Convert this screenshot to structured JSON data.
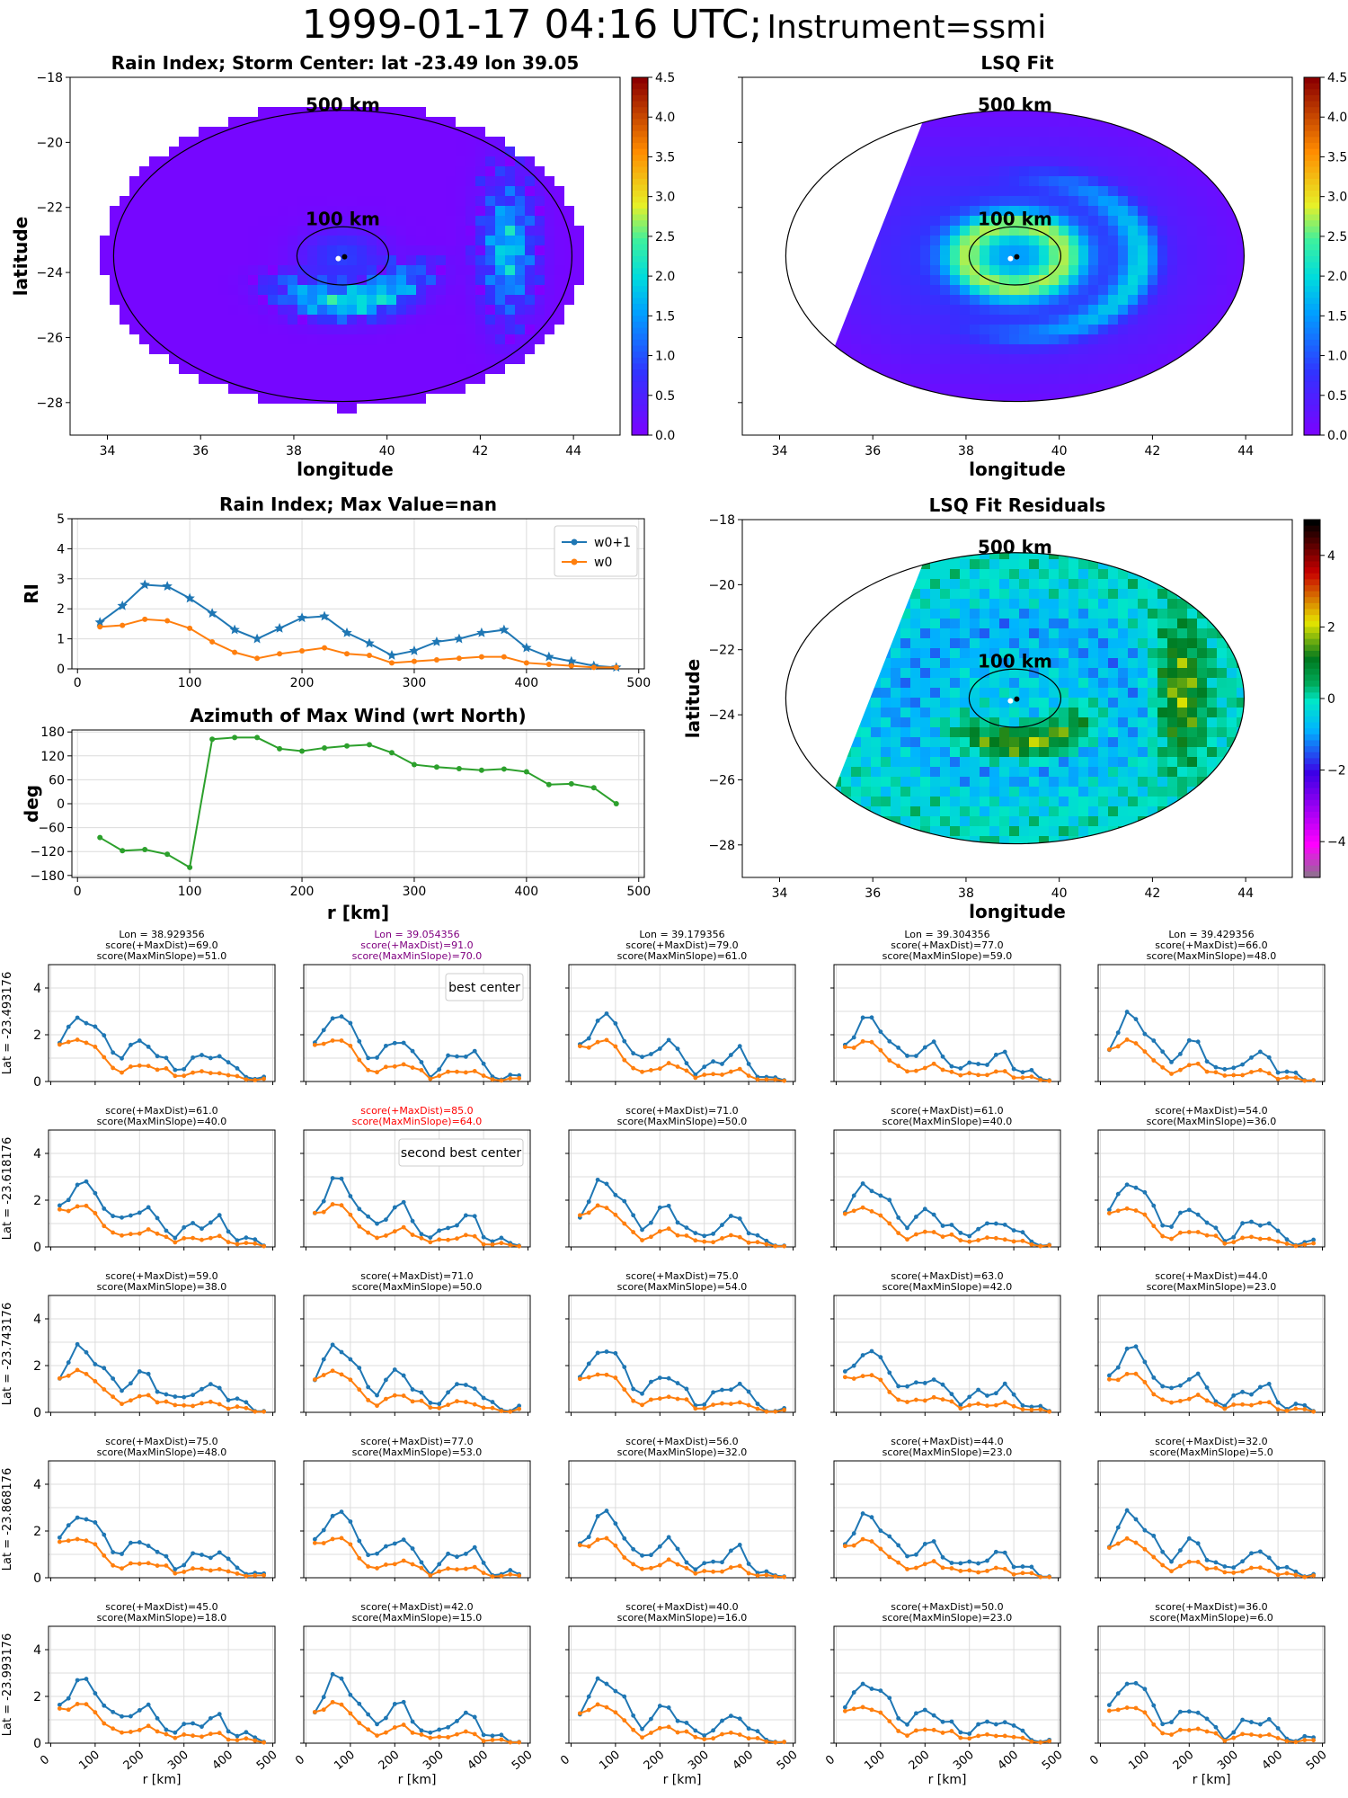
{
  "figure": {
    "title_date": "1999-01-17 04:16 UTC;",
    "title_instrument": "Instrument=ssmi"
  },
  "chart_data": [
    {
      "id": "rain_index_map",
      "type": "heatmap",
      "title": "Rain Index; Storm Center: lat -23.49 lon 39.05",
      "xlabel": "longitude",
      "ylabel": "latitude",
      "xlim": [
        33.2,
        45.0
      ],
      "ylim": [
        -29.0,
        -18.0
      ],
      "xticks": [
        "34",
        "36",
        "38",
        "40",
        "42",
        "44"
      ],
      "yticks": [
        "−28",
        "−26",
        "−24",
        "−22",
        "−20",
        "−18"
      ],
      "colorbar": {
        "min": 0.0,
        "max": 4.5,
        "ticks": [
          "0.0",
          "0.5",
          "1.0",
          "1.5",
          "2.0",
          "2.5",
          "3.0",
          "3.5",
          "4.0",
          "4.5"
        ],
        "colormap": "rainbow"
      },
      "circles": [
        {
          "label": "500 km"
        },
        {
          "label": "100 km"
        }
      ],
      "center": {
        "lat": -23.49,
        "lon": 39.05
      }
    },
    {
      "id": "lsq_fit_map",
      "type": "heatmap",
      "title": "LSQ Fit",
      "xlim": [
        33.2,
        45.0
      ],
      "ylim": [
        -29.0,
        -18.0
      ],
      "xticks": [
        "34",
        "36",
        "38",
        "40",
        "42",
        "44"
      ],
      "colorbar": {
        "min": 0.0,
        "max": 4.5,
        "ticks": [
          "0.0",
          "0.5",
          "1.0",
          "1.5",
          "2.0",
          "2.5",
          "3.0",
          "3.5",
          "4.0",
          "4.5"
        ],
        "colormap": "rainbow"
      },
      "circles": [
        {
          "label": "500 km"
        },
        {
          "label": "100 km"
        }
      ]
    },
    {
      "id": "rain_index_profile",
      "type": "line",
      "title": "Rain Index; Max Value=nan",
      "ylabel": "RI",
      "xlim": [
        -5,
        505
      ],
      "ylim": [
        0,
        5
      ],
      "xticks": [
        "0",
        "100",
        "200",
        "300",
        "400",
        "500"
      ],
      "yticks": [
        "0",
        "1",
        "2",
        "3",
        "4",
        "5"
      ],
      "legend_position": "top-right",
      "x": [
        20,
        40,
        60,
        80,
        100,
        120,
        140,
        160,
        180,
        200,
        220,
        240,
        260,
        280,
        300,
        320,
        340,
        360,
        380,
        400,
        420,
        440,
        460,
        480
      ],
      "series": [
        {
          "name": "w0+1",
          "color": "#1f77b4",
          "marker": "star",
          "values": [
            1.55,
            2.1,
            2.8,
            2.75,
            2.35,
            1.85,
            1.3,
            1.0,
            1.35,
            1.7,
            1.75,
            1.2,
            0.85,
            0.45,
            0.6,
            0.9,
            1.0,
            1.2,
            1.3,
            0.7,
            0.4,
            0.25,
            0.1,
            0.05
          ]
        },
        {
          "name": "w0",
          "color": "#ff7f0e",
          "marker": "dot",
          "values": [
            1.4,
            1.45,
            1.65,
            1.6,
            1.35,
            0.9,
            0.55,
            0.35,
            0.5,
            0.6,
            0.7,
            0.5,
            0.45,
            0.2,
            0.25,
            0.3,
            0.35,
            0.4,
            0.4,
            0.2,
            0.15,
            0.1,
            0.05,
            0.05
          ]
        }
      ]
    },
    {
      "id": "azimuth_max_wind",
      "type": "line",
      "title": "Azimuth of Max Wind (wrt North)",
      "xlabel": "r [km]",
      "ylabel": "deg",
      "xlim": [
        -5,
        505
      ],
      "ylim": [
        -185,
        185
      ],
      "xticks": [
        "0",
        "100",
        "200",
        "300",
        "400",
        "500"
      ],
      "yticks": [
        "−180",
        "−120",
        "−60",
        "0",
        "60",
        "120",
        "180"
      ],
      "x": [
        20,
        40,
        60,
        80,
        100,
        120,
        140,
        160,
        180,
        200,
        220,
        240,
        260,
        280,
        300,
        320,
        340,
        360,
        380,
        400,
        420,
        440,
        460,
        480
      ],
      "series": [
        {
          "color": "#2ca02c",
          "values": [
            -85,
            -118,
            -115,
            -127,
            -160,
            162,
            166,
            166,
            138,
            132,
            140,
            145,
            148,
            128,
            98,
            92,
            88,
            84,
            87,
            80,
            48,
            50,
            40,
            0
          ]
        }
      ]
    },
    {
      "id": "lsq_residuals_map",
      "type": "heatmap",
      "title": "LSQ Fit Residuals",
      "xlabel": "longitude",
      "ylabel": "latitude",
      "xlim": [
        33.2,
        45.0
      ],
      "ylim": [
        -29.0,
        -18.0
      ],
      "xticks": [
        "34",
        "36",
        "38",
        "40",
        "42",
        "44"
      ],
      "yticks": [
        "−28",
        "−26",
        "−24",
        "−22",
        "−20",
        "−18"
      ],
      "colorbar": {
        "min": -5,
        "max": 5,
        "ticks": [
          "−4",
          "−2",
          "0",
          "2",
          "4"
        ],
        "colormap": "diverging"
      },
      "circles": [
        {
          "label": "500 km"
        },
        {
          "label": "100 km"
        }
      ]
    },
    {
      "id": "center_grid",
      "type": "line",
      "xlabel": "r [km]",
      "xticks": [
        "0",
        "100",
        "200",
        "300",
        "400",
        "500"
      ],
      "yticks": [
        "0",
        "2",
        "4"
      ],
      "ylim": [
        0,
        5
      ],
      "lon_titles": [
        "Lon = 38.929356",
        "Lon = 39.054356",
        "Lon = 39.179356",
        "Lon = 39.304356",
        "Lon = 39.429356"
      ],
      "lat_labels": [
        "Lat = -23.493176",
        "Lat = -23.618176",
        "Lat = -23.743176",
        "Lat = -23.868176",
        "Lat = -23.993176"
      ],
      "notes": {
        "best": "best center",
        "second": "second best center"
      },
      "scores": [
        [
          [
            "score(+MaxDist)=69.0",
            "score(MaxMinSlope)=51.0"
          ],
          [
            "score(+MaxDist)=91.0",
            "score(MaxMinSlope)=70.0"
          ],
          [
            "score(+MaxDist)=79.0",
            "score(MaxMinSlope)=61.0"
          ],
          [
            "score(+MaxDist)=77.0",
            "score(MaxMinSlope)=59.0"
          ],
          [
            "score(+MaxDist)=66.0",
            "score(MaxMinSlope)=48.0"
          ]
        ],
        [
          [
            "score(+MaxDist)=61.0",
            "score(MaxMinSlope)=40.0"
          ],
          [
            "score(+MaxDist)=85.0",
            "score(MaxMinSlope)=64.0"
          ],
          [
            "score(+MaxDist)=71.0",
            "score(MaxMinSlope)=50.0"
          ],
          [
            "score(+MaxDist)=61.0",
            "score(MaxMinSlope)=40.0"
          ],
          [
            "score(+MaxDist)=54.0",
            "score(MaxMinSlope)=36.0"
          ]
        ],
        [
          [
            "score(+MaxDist)=59.0",
            "score(MaxMinSlope)=38.0"
          ],
          [
            "score(+MaxDist)=71.0",
            "score(MaxMinSlope)=50.0"
          ],
          [
            "score(+MaxDist)=75.0",
            "score(MaxMinSlope)=54.0"
          ],
          [
            "score(+MaxDist)=63.0",
            "score(MaxMinSlope)=42.0"
          ],
          [
            "score(+MaxDist)=44.0",
            "score(MaxMinSlope)=23.0"
          ]
        ],
        [
          [
            "score(+MaxDist)=75.0",
            "score(MaxMinSlope)=48.0"
          ],
          [
            "score(+MaxDist)=77.0",
            "score(MaxMinSlope)=53.0"
          ],
          [
            "score(+MaxDist)=56.0",
            "score(MaxMinSlope)=32.0"
          ],
          [
            "score(+MaxDist)=44.0",
            "score(MaxMinSlope)=23.0"
          ],
          [
            "score(+MaxDist)=32.0",
            "score(MaxMinSlope)=5.0"
          ]
        ],
        [
          [
            "score(+MaxDist)=45.0",
            "score(MaxMinSlope)=18.0"
          ],
          [
            "score(+MaxDist)=42.0",
            "score(MaxMinSlope)=15.0"
          ],
          [
            "score(+MaxDist)=40.0",
            "score(MaxMinSlope)=16.0"
          ],
          [
            "score(+MaxDist)=50.0",
            "score(MaxMinSlope)=23.0"
          ],
          [
            "score(+MaxDist)=36.0",
            "score(MaxMinSlope)=6.0"
          ]
        ]
      ],
      "colors": {
        "w0p1": "#1f77b4",
        "w0": "#ff7f0e",
        "best": "#800080",
        "second": "#ff0000"
      }
    }
  ]
}
